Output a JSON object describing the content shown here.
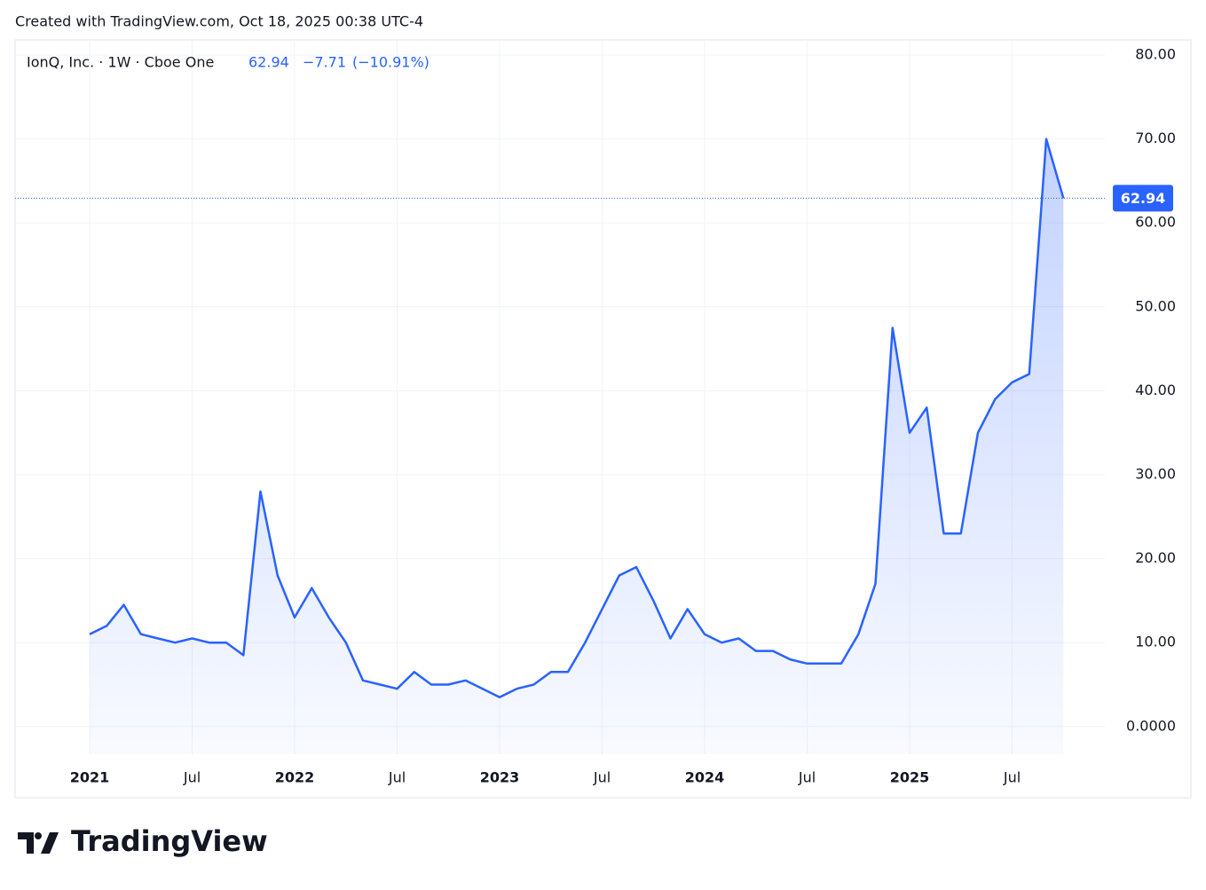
{
  "header": {
    "created": "Created with TradingView.com, Oct 18, 2025 00:38 UTC-4",
    "brand": "TradingView"
  },
  "chart_data": {
    "type": "area",
    "title": "IonQ, Inc. · 1W · Cboe One",
    "last": {
      "price": 62.94,
      "change": {
        "value": -7.71,
        "label": "−7.71"
      },
      "change_pct": {
        "value": -10.91,
        "label": "(−10.91%)"
      }
    },
    "color": "#2962ff",
    "x": [
      "2021-01",
      "2021-02",
      "2021-03",
      "2021-04",
      "2021-05",
      "2021-06",
      "2021-07",
      "2021-08",
      "2021-09",
      "2021-10",
      "2021-11",
      "2021-12",
      "2022-01",
      "2022-02",
      "2022-03",
      "2022-04",
      "2022-05",
      "2022-06",
      "2022-07",
      "2022-08",
      "2022-09",
      "2022-10",
      "2022-11",
      "2022-12",
      "2023-01",
      "2023-02",
      "2023-03",
      "2023-04",
      "2023-05",
      "2023-06",
      "2023-07",
      "2023-08",
      "2023-09",
      "2023-10",
      "2023-11",
      "2023-12",
      "2024-01",
      "2024-02",
      "2024-03",
      "2024-04",
      "2024-05",
      "2024-06",
      "2024-07",
      "2024-08",
      "2024-09",
      "2024-10",
      "2024-11",
      "2024-12",
      "2025-01",
      "2025-02",
      "2025-03",
      "2025-04",
      "2025-05",
      "2025-06",
      "2025-07",
      "2025-08",
      "2025-09",
      "2025-10"
    ],
    "values": [
      11,
      12,
      14.5,
      11,
      10.5,
      10,
      10.5,
      10,
      10,
      8.5,
      28,
      18,
      13,
      16.5,
      13,
      10,
      5.5,
      5,
      4.5,
      6.5,
      5,
      5,
      5.5,
      4.5,
      3.5,
      4.5,
      5,
      6.5,
      6.5,
      10,
      14,
      18,
      19,
      15,
      10.5,
      14,
      11,
      10,
      10.5,
      9,
      9,
      8,
      7.5,
      7.5,
      7.5,
      11,
      17,
      47.5,
      35,
      38,
      23,
      23,
      35,
      39,
      41,
      42,
      70,
      62.94
    ],
    "xticks": [
      {
        "value": "2021-01",
        "label": "2021"
      },
      {
        "value": "2021-07",
        "label": "Jul"
      },
      {
        "value": "2022-01",
        "label": "2022"
      },
      {
        "value": "2022-07",
        "label": "Jul"
      },
      {
        "value": "2023-01",
        "label": "2023"
      },
      {
        "value": "2023-07",
        "label": "Jul"
      },
      {
        "value": "2024-01",
        "label": "2024"
      },
      {
        "value": "2024-07",
        "label": "Jul"
      },
      {
        "value": "2025-01",
        "label": "2025"
      },
      {
        "value": "2025-07",
        "label": "Jul"
      }
    ],
    "ylim": [
      -3.3,
      81.8
    ],
    "yticks": [
      {
        "value": 0,
        "label": "0.0000"
      },
      {
        "value": 10,
        "label": "10.00"
      },
      {
        "value": 20,
        "label": "20.00"
      },
      {
        "value": 30,
        "label": "30.00"
      },
      {
        "value": 40,
        "label": "40.00"
      },
      {
        "value": 50,
        "label": "50.00"
      },
      {
        "value": 60,
        "label": "60.00"
      },
      {
        "value": 70,
        "label": "70.00"
      },
      {
        "value": 80,
        "label": "80.00"
      }
    ],
    "grid": true
  }
}
